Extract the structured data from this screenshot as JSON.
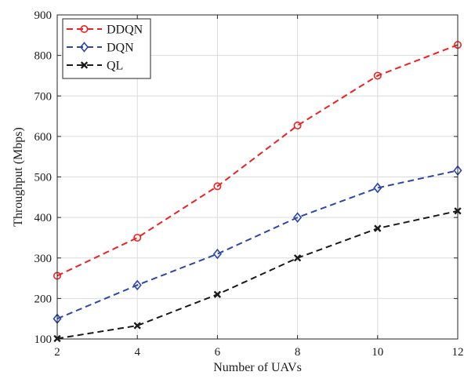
{
  "chart_data": {
    "type": "line",
    "xlabel": "Number of UAVs",
    "ylabel": "Throughput (Mbps)",
    "x": [
      2,
      4,
      6,
      8,
      10,
      12
    ],
    "xlim": [
      2,
      12
    ],
    "ylim": [
      100,
      900
    ],
    "xticks": [
      "2",
      "4",
      "6",
      "8",
      "10",
      "12"
    ],
    "yticks": [
      "100",
      "200",
      "300",
      "400",
      "500",
      "600",
      "700",
      "800",
      "900"
    ],
    "grid": true,
    "legend_position": "top-left",
    "series": [
      {
        "name": "DDQN",
        "values": [
          256,
          350,
          477,
          627,
          750,
          826
        ],
        "color": "#ee2222",
        "marker": "circle",
        "line_style": "dashed"
      },
      {
        "name": "DQN",
        "values": [
          150,
          233,
          310,
          400,
          473,
          516
        ],
        "color": "#2c47a8",
        "marker": "diamond",
        "line_style": "dashed"
      },
      {
        "name": "QL",
        "values": [
          101,
          133,
          210,
          300,
          373,
          416
        ],
        "color": "#1a1a1a",
        "marker": "x",
        "line_style": "dashed"
      }
    ]
  }
}
